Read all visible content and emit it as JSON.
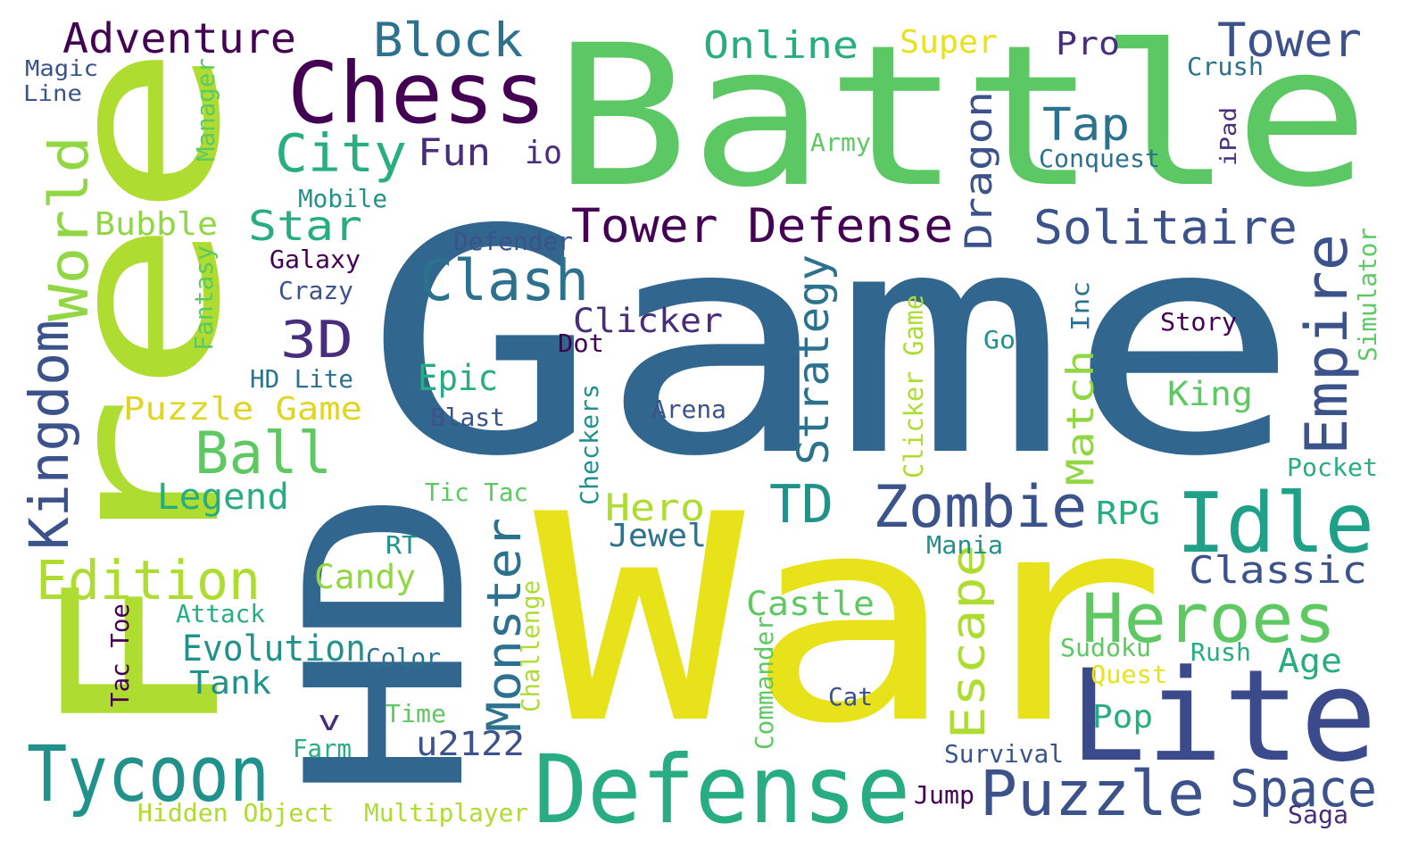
{
  "palette": {
    "yellow": "#e8e21b",
    "lime": "#aedc30",
    "green": "#5cc863",
    "teal_green": "#27ad81",
    "teal": "#21918c",
    "steel_blue": "#2c728e",
    "navy": "#3b528b",
    "indigo": "#472d7b",
    "purple": "#440154"
  },
  "words": [
    {
      "text": "Game",
      "color": "#31668e"
    },
    {
      "text": "Battle",
      "color": "#5cc863"
    },
    {
      "text": "War",
      "color": "#e8e21b"
    },
    {
      "text": "Free",
      "color": "#aedc30"
    },
    {
      "text": "HD",
      "color": "#31668e"
    },
    {
      "text": "Lite",
      "color": "#3b4a8a"
    },
    {
      "text": "Defense",
      "color": "#27ad81"
    },
    {
      "text": "Chess",
      "color": "#440154"
    },
    {
      "text": "Idle",
      "color": "#1fa088"
    },
    {
      "text": "Tycoon",
      "color": "#21918c"
    },
    {
      "text": "Heroes",
      "color": "#5ec962"
    },
    {
      "text": "Puzzle",
      "color": "#3b528b"
    },
    {
      "text": "Zombie",
      "color": "#3b528b"
    },
    {
      "text": "Kingdom",
      "color": "#3b528b"
    },
    {
      "text": "World",
      "color": "#90d743"
    },
    {
      "text": "Tower Defense",
      "color": "#440154"
    },
    {
      "text": "Solitaire",
      "color": "#3b528b"
    },
    {
      "text": "Clash",
      "color": "#2c728e"
    },
    {
      "text": "Block",
      "color": "#2c728e"
    },
    {
      "text": "Tower",
      "color": "#3b528b"
    },
    {
      "text": "Adventure",
      "color": "#440154"
    },
    {
      "text": "City",
      "color": "#28ae80"
    },
    {
      "text": "Ball",
      "color": "#5ec962"
    },
    {
      "text": "Edition",
      "color": "#aedc30"
    },
    {
      "text": "Space",
      "color": "#3b528b"
    },
    {
      "text": "Empire",
      "color": "#3b528b"
    },
    {
      "text": "3D",
      "color": "#472d7b"
    },
    {
      "text": "Online",
      "color": "#27ad81"
    },
    {
      "text": "Star",
      "color": "#27ad81"
    },
    {
      "text": "Tap",
      "color": "#2c728e"
    },
    {
      "text": "Monster",
      "color": "#2c728e"
    },
    {
      "text": "Escape",
      "color": "#aedc30"
    },
    {
      "text": "TD",
      "color": "#21918c"
    },
    {
      "text": "Dragon",
      "color": "#3b528b"
    },
    {
      "text": "Strategy",
      "color": "#2c728e"
    },
    {
      "text": "Fun",
      "color": "#472d7b"
    },
    {
      "text": "Epic",
      "color": "#27ad81"
    },
    {
      "text": "Match",
      "color": "#90d743"
    },
    {
      "text": "Hero",
      "color": "#aedc30"
    },
    {
      "text": "Classic",
      "color": "#3b528b"
    },
    {
      "text": "Legend",
      "color": "#27ad81"
    },
    {
      "text": "Evolution",
      "color": "#21918c"
    },
    {
      "text": "Candy",
      "color": "#90d743"
    },
    {
      "text": "Castle",
      "color": "#5ec962"
    },
    {
      "text": "Clicker",
      "color": "#472d7b"
    },
    {
      "text": "Bubble",
      "color": "#90d743"
    },
    {
      "text": "Tank",
      "color": "#21918c"
    },
    {
      "text": "Puzzle Game",
      "color": "#e0d523"
    },
    {
      "text": "Jewel",
      "color": "#2c728e"
    },
    {
      "text": "King",
      "color": "#5ec962"
    },
    {
      "text": "Age",
      "color": "#27ad81"
    },
    {
      "text": "Pop",
      "color": "#27ad81"
    },
    {
      "text": "RPG",
      "color": "#27ad81"
    },
    {
      "text": "u2122",
      "color": "#3b528b"
    },
    {
      "text": "Super",
      "color": "#e8e21b"
    },
    {
      "text": "Pro",
      "color": "#472d7b"
    },
    {
      "text": "io",
      "color": "#472d7b"
    },
    {
      "text": "v",
      "color": "#472d7b"
    },
    {
      "text": "Magic",
      "color": "#3b528b"
    },
    {
      "text": "Line",
      "color": "#3b528b"
    },
    {
      "text": "Manager",
      "color": "#5ec962"
    },
    {
      "text": "Crush",
      "color": "#2c728e"
    },
    {
      "text": "iPad",
      "color": "#472d7b"
    },
    {
      "text": "Army",
      "color": "#5ec962"
    },
    {
      "text": "Conquest",
      "color": "#2c728e"
    },
    {
      "text": "Mobile",
      "color": "#21918c"
    },
    {
      "text": "Defender",
      "color": "#3b528b"
    },
    {
      "text": "Galaxy",
      "color": "#440154"
    },
    {
      "text": "Crazy",
      "color": "#3b528b"
    },
    {
      "text": "Fantasy",
      "color": "#5ec962"
    },
    {
      "text": "HD Lite",
      "color": "#2c728e"
    },
    {
      "text": "Dot",
      "color": "#440154"
    },
    {
      "text": "Inc",
      "color": "#2c728e"
    },
    {
      "text": "Story",
      "color": "#440154"
    },
    {
      "text": "Simulator",
      "color": "#5ec962"
    },
    {
      "text": "Go",
      "color": "#21918c"
    },
    {
      "text": "Blast",
      "color": "#3b528b"
    },
    {
      "text": "Arena",
      "color": "#3b528b"
    },
    {
      "text": "Clicker Game",
      "color": "#aedc30"
    },
    {
      "text": "Checkers",
      "color": "#21918c"
    },
    {
      "text": "Pocket",
      "color": "#27ad81"
    },
    {
      "text": "Tic Tac",
      "color": "#5ec962"
    },
    {
      "text": "Mania",
      "color": "#21918c"
    },
    {
      "text": "RT",
      "color": "#21918c"
    },
    {
      "text": "Attack",
      "color": "#27ad81"
    },
    {
      "text": "Tac Toe",
      "color": "#440154"
    },
    {
      "text": "Color",
      "color": "#2c728e"
    },
    {
      "text": "Challenge",
      "color": "#aedc30"
    },
    {
      "text": "Commander",
      "color": "#5ec962"
    },
    {
      "text": "Sudoku",
      "color": "#5ec962"
    },
    {
      "text": "Rush",
      "color": "#27ad81"
    },
    {
      "text": "Quest",
      "color": "#e8e21b"
    },
    {
      "text": "Cat",
      "color": "#3b528b"
    },
    {
      "text": "Time",
      "color": "#5ec962"
    },
    {
      "text": "Farm",
      "color": "#27ad81"
    },
    {
      "text": "Survival",
      "color": "#3b528b"
    },
    {
      "text": "Hidden Object",
      "color": "#aedc30"
    },
    {
      "text": "Multiplayer",
      "color": "#aedc30"
    },
    {
      "text": "Jump",
      "color": "#440154"
    },
    {
      "text": "Saga",
      "color": "#472d7b"
    }
  ]
}
